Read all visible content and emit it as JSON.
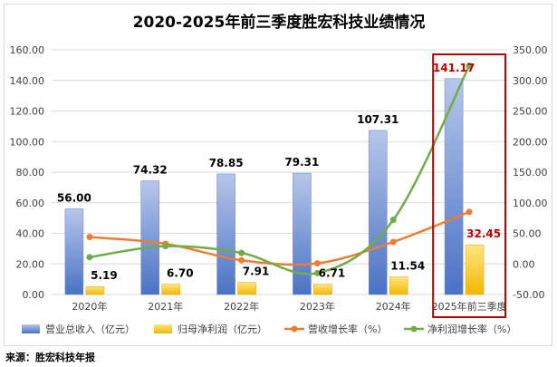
{
  "chart_data": {
    "type": "bar",
    "title": "2020-2025年前三季度胜宏科技业绩情况",
    "categories": [
      "2020年",
      "2021年",
      "2022年",
      "2023年",
      "2024年",
      "2025年前三季度"
    ],
    "series": [
      {
        "name": "营业总收入（亿元）",
        "type": "bar",
        "axis": "left",
        "values": [
          56.0,
          74.32,
          78.85,
          79.31,
          107.31,
          141.17
        ],
        "labels": [
          "56.00",
          "74.32",
          "78.85",
          "79.31",
          "107.31",
          "141.17"
        ]
      },
      {
        "name": "归母净利润（亿元）",
        "type": "bar",
        "axis": "left",
        "values": [
          5.19,
          6.7,
          7.91,
          6.71,
          11.54,
          32.45
        ],
        "labels": [
          "5.19",
          "6.70",
          "7.91",
          "6.71",
          "11.54",
          "32.45"
        ]
      },
      {
        "name": "营收增长率（%）",
        "type": "line",
        "axis": "right",
        "values": [
          44,
          33,
          6,
          1,
          36,
          85
        ]
      },
      {
        "name": "净利润增长率（%）",
        "type": "line",
        "axis": "right",
        "values": [
          11,
          29,
          18,
          -15,
          72,
          324
        ]
      }
    ],
    "y_left": {
      "min": 0,
      "max": 160,
      "step": 20,
      "ticks": [
        "0.00",
        "20.00",
        "40.00",
        "60.00",
        "80.00",
        "100.00",
        "120.00",
        "140.00",
        "160.00"
      ]
    },
    "y_right": {
      "min": -50,
      "max": 350,
      "step": 50,
      "ticks": [
        "-50.00",
        "0.00",
        "50.00",
        "100.00",
        "150.00",
        "200.00",
        "250.00",
        "300.00",
        "350.00"
      ]
    },
    "highlight_category": "2025年前三季度",
    "colors": {
      "revenue_bar_top": "#b7c6ea",
      "revenue_bar_bottom": "#4a72c4",
      "profit_bar_top": "#ffe680",
      "profit_bar_bottom": "#f2b800",
      "revenue_growth_line": "#ed7d31",
      "profit_growth_line": "#70ad47",
      "highlight": "#c00000"
    },
    "legend_position": "bottom"
  },
  "source": "来源：胜宏科技年报"
}
